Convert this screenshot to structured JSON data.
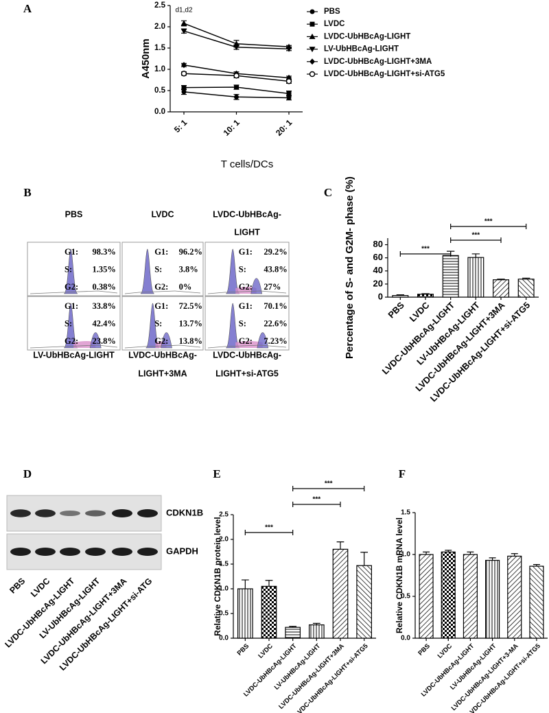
{
  "chart_data": [
    {
      "type": "line",
      "panel_label": "A",
      "y_label": "A450nm",
      "x_label": "T cells/DCs",
      "annotation": "d1,d2",
      "categories": [
        "5: 1",
        "10: 1",
        "20: 1"
      ],
      "color": "#000000",
      "ylim": [
        0,
        2.5
      ],
      "yticks": [
        {
          "value": 0,
          "label": "0.0"
        },
        0.5,
        {
          "value": 1,
          "label": "1.0"
        },
        1.5,
        {
          "value": 2,
          "label": "2.0"
        },
        2.5
      ],
      "series": [
        {
          "name": "PBS",
          "marker": "circle",
          "values": [
            0.47,
            0.35,
            0.33
          ],
          "errors": [
            0.06,
            0.06,
            0.05
          ]
        },
        {
          "name": "LVDC",
          "marker": "square",
          "values": [
            0.57,
            0.58,
            0.43
          ],
          "errors": [
            0.05,
            0.05,
            0.06
          ]
        },
        {
          "name": "LVDC-UbHBcAg-LIGHT",
          "marker": "triangle-up",
          "values": [
            2.08,
            1.6,
            1.53
          ],
          "errors": [
            0.06,
            0.08,
            0.03
          ]
        },
        {
          "name": "LV-UbHBcAg-LIGHT",
          "marker": "triangle-down",
          "values": [
            1.9,
            1.52,
            1.48
          ],
          "errors": [
            0.05,
            0.05,
            0.04
          ]
        },
        {
          "name": "LVDC-UbHBcAg-LIGHT+3MA",
          "marker": "diamond",
          "values": [
            1.1,
            0.9,
            0.8
          ],
          "errors": [
            0.04,
            0.04,
            0.04
          ]
        },
        {
          "name": "LVDC-UbHBcAg-LIGHT+si-ATG5",
          "marker": "open-circle",
          "values": [
            0.9,
            0.85,
            0.72
          ],
          "errors": [
            0.04,
            0.05,
            0.05
          ]
        }
      ]
    },
    {
      "type": "bar",
      "panel_label": "C",
      "y_label": "Percentage of S- and G2M- phase (%)",
      "categories": [
        "PBS",
        "LVDC",
        "LVDC-UbHBcAg-LIGHT",
        "LV-UbHBcAg-LIGHT",
        "LVDC-UbHBcAg-LIGHT+3MA",
        "LVDC-UbHBcAg-LIGHT+si-ATG5"
      ],
      "values": [
        2.5,
        4.5,
        63.5,
        60.5,
        26.5,
        27.5
      ],
      "errors": [
        1,
        0.8,
        6.5,
        5.5,
        1,
        1.5
      ],
      "patterns": [
        "hlines",
        "check",
        "hlines",
        "vlines",
        "diag",
        "diag2"
      ],
      "ylim": [
        0,
        90
      ],
      "yticks": [
        0,
        20,
        40,
        60,
        80
      ],
      "significance": [
        {
          "pair": [
            "PBS",
            "LVDC-UbHBcAg-LIGHT"
          ],
          "label": "***"
        },
        {
          "pair": [
            "LVDC-UbHBcAg-LIGHT",
            "LVDC-UbHBcAg-LIGHT+3MA"
          ],
          "label": "***"
        },
        {
          "pair": [
            "LVDC-UbHBcAg-LIGHT",
            "LVDC-UbHBcAg-LIGHT+si-ATG5"
          ],
          "label": "***"
        }
      ]
    },
    {
      "type": "bar",
      "panel_label": "E",
      "y_label": "Relative CDKN1B protein level",
      "categories": [
        "PBS",
        "LVDC",
        "LVDC-UbHBcAg-LIGHT",
        "LV-UbHBcAg-LIGHT",
        "LVDC-UbHBcAg-LIGHT+3MA",
        "LVDC-UbHBcAg-LIGHT+si-ATG5"
      ],
      "values": [
        1.0,
        1.05,
        0.22,
        0.27,
        1.8,
        1.47
      ],
      "errors": [
        0.18,
        0.12,
        0.02,
        0.03,
        0.15,
        0.27
      ],
      "patterns": [
        "vlines",
        "check",
        "hlines",
        "vlines",
        "diag",
        "diag2"
      ],
      "ylim": [
        0,
        2.5
      ],
      "yticks": [
        {
          "value": 0,
          "label": "0.0"
        },
        0.5,
        {
          "value": 1,
          "label": "1.0"
        },
        1.5,
        {
          "value": 2,
          "label": "2.0"
        },
        2.5
      ],
      "significance": [
        {
          "pair": [
            "PBS",
            "LVDC-UbHBcAg-LIGHT"
          ],
          "label": "***"
        },
        {
          "pair": [
            "LVDC-UbHBcAg-LIGHT",
            "LVDC-UbHBcAg-LIGHT+3MA"
          ],
          "label": "***"
        },
        {
          "pair": [
            "LVDC-UbHBcAg-LIGHT",
            "LVDC-UbHBcAg-LIGHT+si-ATG5"
          ],
          "label": "***"
        }
      ]
    },
    {
      "type": "bar",
      "panel_label": "F",
      "y_label": "Relative CDKN1B mRNA level",
      "categories": [
        "PBS",
        "LVDC",
        "LVDC-UbHBcAg-LIGHT",
        "LV-UbHBcAg-LIGHT",
        "LVDC-UbHBcAg-LIGHT+3-MA",
        "LVDC-UbHBcAg-LIGHT+si-ATG5"
      ],
      "values": [
        1.0,
        1.03,
        1.0,
        0.93,
        0.98,
        0.86
      ],
      "errors": [
        0.03,
        0.02,
        0.03,
        0.03,
        0.03,
        0.02
      ],
      "patterns": [
        "diag",
        "check",
        "diag",
        "vlines",
        "diag",
        "diag2"
      ],
      "ylim": [
        0,
        1.5
      ],
      "yticks": [
        {
          "value": 0,
          "label": "0.0"
        },
        0.5,
        {
          "value": 1,
          "label": "1.0"
        },
        1.5
      ],
      "significance": []
    }
  ],
  "flow": {
    "panel_label": "B",
    "panels": [
      {
        "label": [
          "PBS"
        ],
        "stats": [
          {
            "phase": "G1:",
            "value": "98.3%"
          },
          {
            "phase": "S:",
            "value": "1.35%"
          },
          {
            "phase": "G2:",
            "value": "0.38%"
          }
        ]
      },
      {
        "label": [
          "LVDC"
        ],
        "stats": [
          {
            "phase": "G1:",
            "value": "96.2%"
          },
          {
            "phase": "S:",
            "value": "3.8%"
          },
          {
            "phase": "G2:",
            "value": "0%"
          }
        ]
      },
      {
        "label": [
          "LVDC-UbHBcAg-",
          "LIGHT"
        ],
        "stats": [
          {
            "phase": "G1:",
            "value": "29.2%"
          },
          {
            "phase": "S:",
            "value": "43.8%"
          },
          {
            "phase": "G2:",
            "value": "27%"
          }
        ]
      },
      {
        "label": [
          "LV-UbHBcAg-LIGHT"
        ],
        "stats": [
          {
            "phase": "G1:",
            "value": "33.8%"
          },
          {
            "phase": "S:",
            "value": "42.4%"
          },
          {
            "phase": "G2:",
            "value": "23.8%"
          }
        ]
      },
      {
        "label": [
          "LVDC-UbHBcAg-",
          "LIGHT+3MA"
        ],
        "stats": [
          {
            "phase": "G1:",
            "value": "72.5%"
          },
          {
            "phase": "S:",
            "value": "13.7%"
          },
          {
            "phase": "G2:",
            "value": "13.8%"
          }
        ]
      },
      {
        "label": [
          "LVDC-UbHBcAg-",
          "LIGHT+si-ATG5"
        ],
        "stats": [
          {
            "phase": "G1:",
            "value": "70.1%"
          },
          {
            "phase": "S:",
            "value": "22.6%"
          },
          {
            "phase": "G2:",
            "value": "7.23%"
          }
        ]
      }
    ]
  },
  "blot": {
    "panel_label": "D",
    "rows": [
      "CDKN1B",
      "GAPDH"
    ],
    "lanes": [
      "PBS",
      "LVDC",
      "LVDC-UbHBcAg-LIGHT",
      "LV-UbHBcAg-LIGHT",
      "LVDC-UbHBcAg-LIGHT+3MA",
      "LVDC-UbHBcAg-LIGHT+si-ATG"
    ]
  }
}
